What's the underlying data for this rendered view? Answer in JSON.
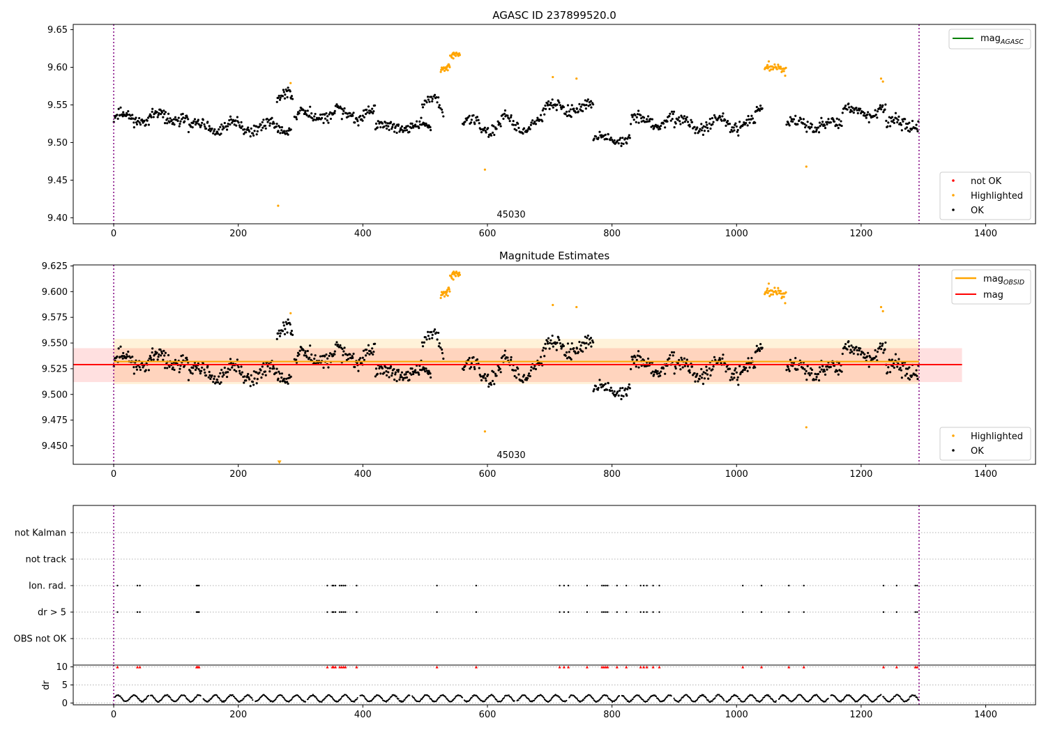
{
  "chart_data": [
    {
      "type": "scatter",
      "title": "AGASC ID 237899520.0",
      "xlim": [
        -65,
        1480
      ],
      "ylim": [
        9.392,
        9.657
      ],
      "xticks": [
        0,
        200,
        400,
        600,
        800,
        1000,
        1200,
        1400
      ],
      "yticks": [
        9.4,
        9.45,
        9.5,
        9.55,
        9.6,
        9.65
      ],
      "ytick_labels": [
        "9.40",
        "9.45",
        "9.50",
        "9.55",
        "9.60",
        "9.65"
      ],
      "vlines": [
        0,
        1293
      ],
      "obsid_label": {
        "text": "45030",
        "x": 646
      },
      "legend_top": {
        "position": "top-right",
        "entries": [
          {
            "label": "mag",
            "sub": "AGASC",
            "color": "#008000"
          }
        ]
      },
      "legend_bottom": {
        "position": "lower-right",
        "entries": [
          {
            "label": "not OK",
            "color": "#ff0000"
          },
          {
            "label": "Highlighted",
            "color": "#ffa500"
          },
          {
            "label": "OK",
            "color": "#000000"
          }
        ]
      },
      "series": [
        {
          "name": "OK",
          "color": "#000000",
          "segments": [
            {
              "x0": 0,
              "x1": 120,
              "n": 110,
              "base": 9.533,
              "amp": 0.006,
              "noise": 0.009,
              "seed": 11
            },
            {
              "x0": 120,
              "x1": 285,
              "n": 140,
              "base": 9.521,
              "amp": 0.006,
              "noise": 0.009,
              "seed": 12
            },
            {
              "x0": 262,
              "x1": 288,
              "n": 24,
              "base": 9.555,
              "amp": 0.012,
              "noise": 0.01,
              "seed": 13
            },
            {
              "x0": 290,
              "x1": 420,
              "n": 110,
              "base": 9.537,
              "amp": 0.006,
              "noise": 0.01,
              "seed": 14
            },
            {
              "x0": 420,
              "x1": 510,
              "n": 80,
              "base": 9.521,
              "amp": 0.004,
              "noise": 0.008,
              "seed": 15
            },
            {
              "x0": 495,
              "x1": 530,
              "n": 25,
              "base": 9.548,
              "amp": 0.012,
              "noise": 0.01,
              "seed": 16
            },
            {
              "x0": 560,
              "x1": 690,
              "n": 100,
              "base": 9.524,
              "amp": 0.01,
              "noise": 0.01,
              "seed": 17
            },
            {
              "x0": 690,
              "x1": 770,
              "n": 70,
              "base": 9.546,
              "amp": 0.006,
              "noise": 0.01,
              "seed": 18
            },
            {
              "x0": 770,
              "x1": 830,
              "n": 45,
              "base": 9.505,
              "amp": 0.004,
              "noise": 0.008,
              "seed": 19
            },
            {
              "x0": 830,
              "x1": 900,
              "n": 60,
              "base": 9.528,
              "amp": 0.006,
              "noise": 0.009,
              "seed": 20
            },
            {
              "x0": 900,
              "x1": 1030,
              "n": 110,
              "base": 9.525,
              "amp": 0.008,
              "noise": 0.009,
              "seed": 21
            },
            {
              "x0": 1030,
              "x1": 1042,
              "n": 12,
              "base": 9.54,
              "amp": 0.004,
              "noise": 0.008,
              "seed": 22
            },
            {
              "x0": 1080,
              "x1": 1170,
              "n": 75,
              "base": 9.524,
              "amp": 0.006,
              "noise": 0.01,
              "seed": 23
            },
            {
              "x0": 1170,
              "x1": 1240,
              "n": 60,
              "base": 9.541,
              "amp": 0.006,
              "noise": 0.009,
              "seed": 24
            },
            {
              "x0": 1240,
              "x1": 1293,
              "n": 45,
              "base": 9.524,
              "amp": 0.005,
              "noise": 0.01,
              "seed": 25
            }
          ]
        },
        {
          "name": "Highlighted",
          "color": "#ffa500",
          "segments": [
            {
              "x0": 525,
              "x1": 540,
              "n": 20,
              "base": 9.596,
              "amp": 0.004,
              "noise": 0.005,
              "seed": 31
            },
            {
              "x0": 540,
              "x1": 556,
              "n": 20,
              "base": 9.614,
              "amp": 0.004,
              "noise": 0.007,
              "seed": 32
            },
            {
              "x0": 1045,
              "x1": 1080,
              "n": 35,
              "base": 9.597,
              "amp": 0.006,
              "noise": 0.008,
              "seed": 33
            }
          ],
          "points": [
            [
              264,
              9.416
            ],
            [
              284,
              9.579
            ],
            [
              596,
              9.464
            ],
            [
              705,
              9.587
            ],
            [
              743,
              9.585
            ],
            [
              1112,
              9.468
            ],
            [
              1232,
              9.585
            ],
            [
              1235,
              9.581
            ]
          ]
        }
      ]
    },
    {
      "type": "scatter",
      "title": "Magnitude Estimates",
      "xlim": [
        -65,
        1480
      ],
      "ylim": [
        9.432,
        9.626
      ],
      "xticks": [
        0,
        200,
        400,
        600,
        800,
        1000,
        1200,
        1400
      ],
      "yticks": [
        9.45,
        9.475,
        9.5,
        9.525,
        9.55,
        9.575,
        9.6,
        9.625
      ],
      "ytick_labels": [
        "9.450",
        "9.475",
        "9.500",
        "9.525",
        "9.550",
        "9.575",
        "9.600",
        "9.625"
      ],
      "vlines": [
        0,
        1293
      ],
      "obsid_label": {
        "text": "45030",
        "x": 646
      },
      "mag_line": {
        "label": "mag",
        "value": 9.529,
        "color": "#ff0000",
        "band": [
          9.512,
          9.545
        ],
        "x0": -65,
        "x1": 1362
      },
      "mag_obsid_line": {
        "label": "mag",
        "sub": "OBSID",
        "value": 9.532,
        "color": "#ffa500",
        "band": [
          9.51,
          9.554
        ],
        "x0": 0,
        "x1": 1293
      },
      "clipped_marker": {
        "x": 266,
        "y": 9.433,
        "color": "#ffa500"
      },
      "legend_top": {
        "position": "top-right",
        "entries": [
          {
            "label": "mag",
            "sub": "OBSID",
            "color": "#ffa500"
          },
          {
            "label": "mag",
            "color": "#ff0000"
          }
        ]
      },
      "legend_bottom": {
        "position": "lower-right",
        "entries": [
          {
            "label": "Highlighted",
            "color": "#ffa500"
          },
          {
            "label": "OK",
            "color": "#000000"
          }
        ]
      }
    },
    {
      "type": "scatter",
      "title": "",
      "xlim": [
        -65,
        1480
      ],
      "xticks": [
        0,
        200,
        400,
        600,
        800,
        1000,
        1200,
        1400
      ],
      "flag_rows": [
        "not Kalman",
        "not track",
        "Ion. rad.",
        "dr > 5",
        "OBS not OK"
      ],
      "flag_times": [
        6,
        38,
        42,
        133,
        135,
        137,
        343,
        351,
        353,
        356,
        363,
        366,
        369,
        372,
        390,
        519,
        582,
        716,
        723,
        730,
        760,
        784,
        787,
        790,
        793,
        808,
        823,
        846,
        851,
        856,
        866,
        876,
        1010,
        1040,
        1084,
        1108,
        1236,
        1257,
        1287,
        1290
      ],
      "flagged_rows": [
        "Ion. rad.",
        "dr > 5"
      ],
      "dr": {
        "ylabel": "dr",
        "yticks": [
          0,
          5,
          10
        ],
        "ylim": [
          -0.5,
          10.5
        ],
        "cap": 10,
        "cap_color": "#ff0000",
        "segments_mean": 1.3,
        "segments_amp": 0.9,
        "gap_every": 28
      }
    }
  ]
}
